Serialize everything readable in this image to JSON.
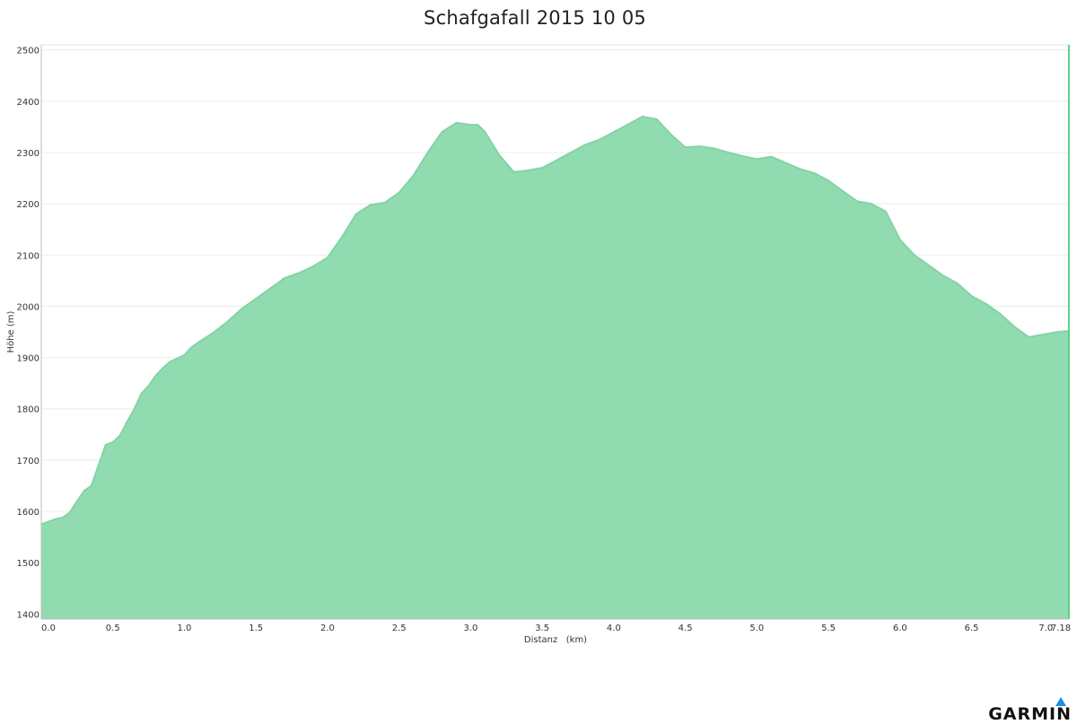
{
  "chart_data": {
    "type": "area",
    "title": "Schafgafall 2015 10 05",
    "xlabel": "Distanz   (km)",
    "ylabel": "Höhe (m)",
    "xlim": [
      0,
      7.18
    ],
    "ylim": [
      1390,
      2510
    ],
    "x_ticks": [
      "0.0",
      "0.5",
      "1.0",
      "1.5",
      "2.0",
      "2.5",
      "3.0",
      "3.5",
      "4.0",
      "4.5",
      "5.0",
      "5.5",
      "6.0",
      "6.5",
      "7.0",
      "7.18"
    ],
    "y_ticks": [
      "1400",
      "1500",
      "1600",
      "1700",
      "1800",
      "1900",
      "2000",
      "2100",
      "2200",
      "2300",
      "2400",
      "2500"
    ],
    "grid": true,
    "fill_color": "#91dbb0",
    "line_color": "#84d3a5",
    "x": [
      0.0,
      0.1,
      0.15,
      0.2,
      0.25,
      0.3,
      0.35,
      0.4,
      0.45,
      0.5,
      0.55,
      0.6,
      0.65,
      0.7,
      0.75,
      0.8,
      0.85,
      0.9,
      0.95,
      1.0,
      1.05,
      1.1,
      1.2,
      1.3,
      1.4,
      1.5,
      1.6,
      1.7,
      1.8,
      1.9,
      2.0,
      2.1,
      2.2,
      2.3,
      2.4,
      2.5,
      2.6,
      2.7,
      2.8,
      2.9,
      3.0,
      3.05,
      3.1,
      3.2,
      3.3,
      3.4,
      3.5,
      3.6,
      3.7,
      3.8,
      3.9,
      4.0,
      4.1,
      4.2,
      4.3,
      4.4,
      4.5,
      4.6,
      4.7,
      4.8,
      4.9,
      5.0,
      5.1,
      5.2,
      5.3,
      5.4,
      5.5,
      5.6,
      5.7,
      5.8,
      5.9,
      6.0,
      6.1,
      6.2,
      6.3,
      6.4,
      6.5,
      6.6,
      6.7,
      6.8,
      6.9,
      7.0,
      7.1,
      7.18
    ],
    "y": [
      1575,
      1585,
      1588,
      1598,
      1620,
      1640,
      1650,
      1690,
      1730,
      1735,
      1748,
      1775,
      1800,
      1830,
      1845,
      1865,
      1880,
      1892,
      1898,
      1905,
      1920,
      1930,
      1948,
      1970,
      1995,
      2015,
      2035,
      2055,
      2065,
      2078,
      2095,
      2135,
      2180,
      2198,
      2202,
      2222,
      2255,
      2300,
      2340,
      2358,
      2354,
      2354,
      2340,
      2295,
      2262,
      2265,
      2270,
      2285,
      2300,
      2315,
      2325,
      2340,
      2355,
      2370,
      2365,
      2335,
      2310,
      2312,
      2308,
      2300,
      2293,
      2287,
      2292,
      2280,
      2268,
      2260,
      2245,
      2225,
      2205,
      2200,
      2185,
      2130,
      2100,
      2080,
      2060,
      2045,
      2020,
      2005,
      1985,
      1960,
      1940,
      1945,
      1950,
      1952
    ]
  },
  "logo": {
    "text": "GARMIN"
  }
}
